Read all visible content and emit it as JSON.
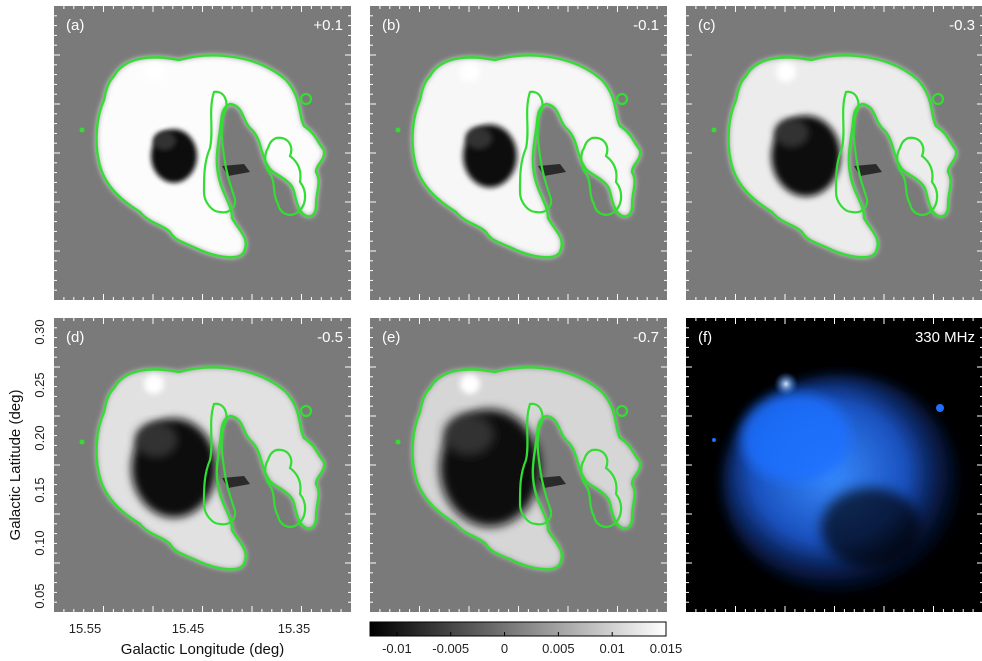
{
  "figure": {
    "panels": [
      {
        "index": "(a)",
        "label": "+0.1",
        "variant": "gray",
        "intensity": 0.95
      },
      {
        "index": "(b)",
        "label": "-0.1",
        "variant": "gray",
        "intensity": 0.85
      },
      {
        "index": "(c)",
        "label": "-0.3",
        "variant": "gray",
        "intensity": 0.65
      },
      {
        "index": "(d)",
        "label": "-0.5",
        "variant": "gray",
        "intensity": 0.45
      },
      {
        "index": "(e)",
        "label": "-0.7",
        "variant": "gray",
        "intensity": 0.25
      },
      {
        "index": "(f)",
        "label": "330 MHz",
        "variant": "blue",
        "intensity": 1.0
      }
    ],
    "y_axis": {
      "title": "Galactic Latitude (deg)",
      "ticks": [
        "0.30",
        "0.25",
        "0.20",
        "0.15",
        "0.10",
        "0.05"
      ]
    },
    "x_axis": {
      "title": "Galactic Longitude (deg)",
      "ticks": [
        "15.55",
        "15.45",
        "15.35"
      ]
    },
    "colorbar": {
      "ticks": [
        "-0.01",
        "-0.005",
        "0",
        "0.005",
        "0.01",
        "0.015"
      ],
      "range": [
        -0.0125,
        0.015
      ]
    },
    "colors": {
      "background_map": "#7a7a7a",
      "contour": "#33dd33",
      "blue_map": "#1e6fff",
      "blue_background": "#000000"
    }
  }
}
